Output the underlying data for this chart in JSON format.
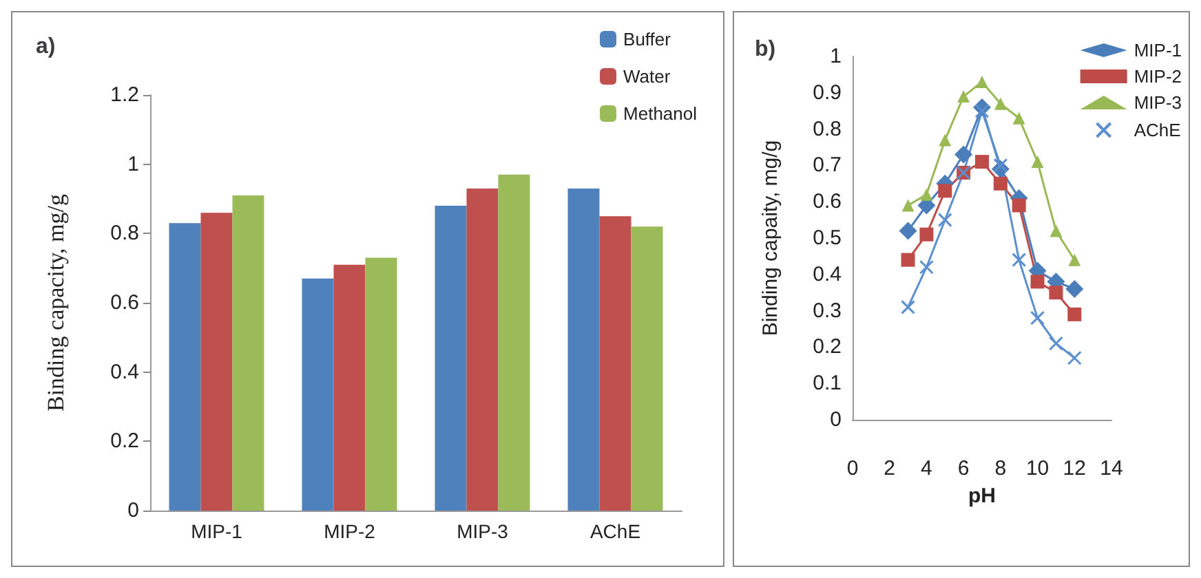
{
  "chart_data": [
    {
      "type": "bar",
      "title": "a)",
      "ylabel": "Binding capacity, mg/g",
      "categories": [
        "MIP-1",
        "MIP-2",
        "MIP-3",
        "AChE"
      ],
      "series": [
        {
          "name": "Buffer",
          "color": "#4f81bd",
          "values": [
            0.83,
            0.67,
            0.88,
            0.93
          ]
        },
        {
          "name": "Water",
          "color": "#c0504d",
          "values": [
            0.86,
            0.71,
            0.93,
            0.85
          ]
        },
        {
          "name": "Methanol",
          "color": "#9bbb59",
          "values": [
            0.91,
            0.73,
            0.97,
            0.82
          ]
        }
      ],
      "ylim": [
        0,
        1.2
      ],
      "yticks": [
        0,
        0.2,
        0.4,
        0.6,
        0.8,
        1,
        1.2
      ],
      "grid": false,
      "legend": "top right"
    },
    {
      "type": "line",
      "title": "b)",
      "xlabel": "pH",
      "ylabel": "Binding capaity, mg/g",
      "x": [
        3,
        4,
        5,
        6,
        7,
        8,
        9,
        10,
        11,
        12
      ],
      "series": [
        {
          "name": "MIP-1",
          "color": "#4a7ebb",
          "marker": "diamond",
          "values": [
            0.52,
            0.59,
            0.65,
            0.73,
            0.86,
            0.69,
            0.61,
            0.41,
            0.38,
            0.36
          ]
        },
        {
          "name": "MIP-2",
          "color": "#be4b48",
          "marker": "square",
          "values": [
            0.44,
            0.51,
            0.63,
            0.68,
            0.71,
            0.65,
            0.59,
            0.38,
            0.35,
            0.29
          ]
        },
        {
          "name": "MIP-3",
          "color": "#98b954",
          "marker": "triangle",
          "values": [
            0.59,
            0.62,
            0.77,
            0.89,
            0.93,
            0.87,
            0.83,
            0.71,
            0.52,
            0.44
          ]
        },
        {
          "name": "AChE",
          "color": "#5b8fd0",
          "marker": "cross",
          "values": [
            0.31,
            0.42,
            0.55,
            0.68,
            0.85,
            0.7,
            0.44,
            0.28,
            0.21,
            0.17
          ]
        }
      ],
      "xlim": [
        0,
        14
      ],
      "xticks": [
        0,
        2,
        4,
        6,
        8,
        10,
        12,
        14
      ],
      "ylim": [
        0,
        1
      ],
      "yticks": [
        0,
        0.1,
        0.2,
        0.3,
        0.4,
        0.5,
        0.6,
        0.7,
        0.8,
        0.9,
        1
      ],
      "grid": false,
      "legend": "top right"
    }
  ]
}
